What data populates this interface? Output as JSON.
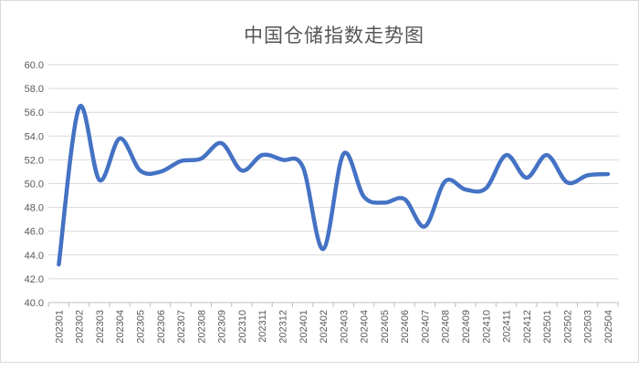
{
  "chart_data": {
    "type": "line",
    "title": "中国仓储指数走势图",
    "categories": [
      "202301",
      "202302",
      "202303",
      "202304",
      "202305",
      "202306",
      "202307",
      "202308",
      "202309",
      "202310",
      "202311",
      "202312",
      "202401",
      "202402",
      "202403",
      "202404",
      "202405",
      "202406",
      "202407",
      "202408",
      "202409",
      "202410",
      "202411",
      "202412",
      "202501",
      "202502",
      "202503",
      "202504"
    ],
    "series": [
      {
        "values": [
          43.2,
          56.4,
          50.3,
          53.8,
          51.1,
          51.0,
          51.9,
          52.1,
          53.4,
          51.1,
          52.4,
          52.0,
          51.4,
          44.5,
          52.5,
          48.9,
          48.4,
          48.7,
          46.4,
          50.2,
          49.5,
          49.6,
          52.4,
          50.5,
          52.4,
          50.1,
          50.7,
          50.8
        ]
      }
    ],
    "xlabel": "",
    "ylabel": "",
    "ylim": [
      40.0,
      60.0
    ],
    "y_tick_step": 2.0,
    "y_tick_labels": [
      "60.0",
      "58.0",
      "56.0",
      "54.0",
      "52.0",
      "50.0",
      "48.0",
      "46.0",
      "44.0",
      "42.0",
      "40.0"
    ],
    "grid": true,
    "legend": "none",
    "line_smooth": true
  },
  "colors": {
    "line": "#4472C4",
    "gridline": "#d9d9d9",
    "axis": "#bfbfbf",
    "tick_label": "#595959",
    "title": "#555555",
    "frame_border": "#d9d9d9",
    "background": "#ffffff"
  }
}
